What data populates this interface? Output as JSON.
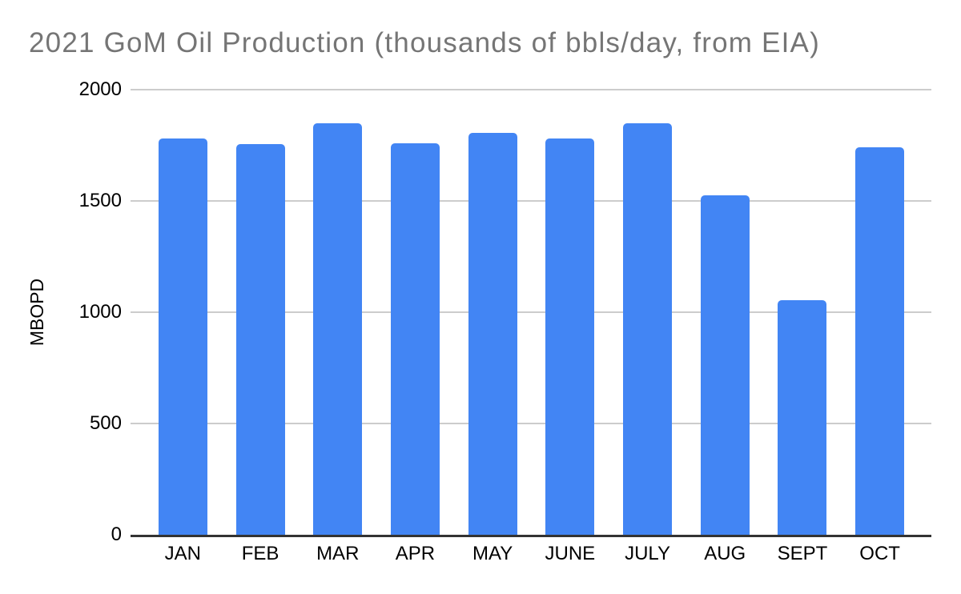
{
  "colors": {
    "background": "#ffffff",
    "bar": "#4285F4",
    "gridline": "#cccccc",
    "axis_line": "#333333",
    "title_text": "#757575",
    "tick_text": "#000000"
  },
  "chart_data": {
    "type": "bar",
    "title": "2021 GoM Oil Production (thousands of bbls/day, from EIA)",
    "xlabel": "",
    "ylabel": "MBOPD",
    "categories": [
      "JAN",
      "FEB",
      "MAR",
      "APR",
      "MAY",
      "JUNE",
      "JULY",
      "AUG",
      "SEPT",
      "OCT"
    ],
    "values": [
      1780,
      1755,
      1850,
      1760,
      1805,
      1780,
      1850,
      1525,
      1055,
      1740
    ],
    "ylim": [
      0,
      2000
    ],
    "yticks": [
      0,
      500,
      1000,
      1500,
      2000
    ],
    "grid": true,
    "legend": "none"
  }
}
